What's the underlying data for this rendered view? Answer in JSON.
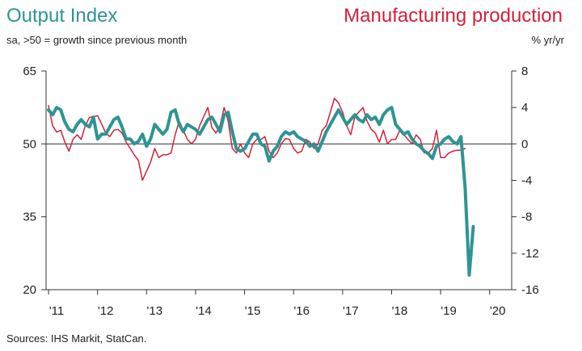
{
  "chart_data": {
    "type": "line",
    "title_left": "Output Index",
    "title_right": "Manufacturing production",
    "subtitle_left": "sa, >50 = growth since previous month",
    "subtitle_right": "% yr/yr",
    "source": "Sources: IHS Markit, StatCan.",
    "x_start": 2011.0,
    "x_range": [
      2010.95,
      2020.45
    ],
    "x_ticks": [
      {
        "value": 2011,
        "label": "'11"
      },
      {
        "value": 2012,
        "label": "'12"
      },
      {
        "value": 2013,
        "label": "'13"
      },
      {
        "value": 2014,
        "label": "'14"
      },
      {
        "value": 2015,
        "label": "'15"
      },
      {
        "value": 2016,
        "label": "'16"
      },
      {
        "value": 2017,
        "label": "'17"
      },
      {
        "value": 2018,
        "label": "'18"
      },
      {
        "value": 2019,
        "label": "'19"
      },
      {
        "value": 2020,
        "label": "'20"
      }
    ],
    "left_axis": {
      "range": [
        20,
        65
      ],
      "ticks": [
        "20",
        "35",
        "50",
        "65"
      ]
    },
    "right_axis": {
      "range": [
        -16,
        8
      ],
      "ticks": [
        "-16",
        "-12",
        "-8",
        "-4",
        "0",
        "4",
        "8"
      ]
    },
    "reference_line": 50,
    "colors": {
      "output": "#2e9494",
      "production": "#d42037",
      "axis": "#333333"
    },
    "series": [
      {
        "name": "Output Index",
        "axis": "left",
        "values": [
          57.0,
          56.0,
          57.5,
          57.0,
          54.5,
          53.0,
          52.5,
          54.0,
          55.0,
          54.0,
          53.5,
          55.5,
          51.0,
          52.0,
          52.0,
          53.5,
          55.0,
          55.5,
          53.5,
          51.0,
          51.0,
          50.0,
          50.5,
          52.0,
          49.5,
          51.0,
          54.0,
          53.0,
          52.0,
          53.0,
          56.5,
          57.0,
          54.0,
          52.5,
          54.0,
          53.5,
          53.0,
          52.0,
          53.5,
          55.0,
          55.5,
          54.0,
          52.5,
          56.0,
          56.5,
          52.5,
          49.0,
          48.5,
          49.0,
          50.5,
          52.0,
          52.0,
          50.0,
          49.5,
          46.5,
          48.5,
          49.5,
          51.5,
          52.5,
          52.0,
          52.5,
          51.5,
          51.0,
          50.5,
          49.5,
          50.0,
          48.5,
          50.5,
          52.5,
          54.0,
          55.5,
          57.0,
          55.5,
          54.0,
          55.0,
          56.0,
          55.0,
          54.5,
          56.0,
          55.0,
          55.5,
          54.0,
          56.0,
          57.0,
          57.5,
          54.0,
          53.0,
          52.0,
          52.5,
          51.0,
          50.0,
          49.5,
          48.5,
          48.0,
          47.0,
          49.5,
          50.0,
          51.0,
          51.5,
          50.5,
          50.0,
          51.5,
          41.0,
          23.0,
          33.0
        ]
      },
      {
        "name": "Manufacturing production",
        "axis": "right",
        "values": [
          4.2,
          2.0,
          1.3,
          1.5,
          0.2,
          -0.8,
          0.5,
          1.0,
          0.5,
          2.0,
          2.9,
          3.0,
          3.1,
          2.2,
          1.2,
          0.8,
          1.5,
          1.6,
          1.2,
          0.2,
          -0.5,
          -1.2,
          -1.8,
          -4.0,
          -3.0,
          -2.0,
          -0.5,
          -1.5,
          -1.2,
          -1.2,
          -1.0,
          1.0,
          2.5,
          1.5,
          0.5,
          0.0,
          0.5,
          2.0,
          3.0,
          4.0,
          1.8,
          1.2,
          2.0,
          4.0,
          2.5,
          -0.5,
          -1.0,
          0.0,
          -1.0,
          -1.5,
          0.0,
          0.5,
          0.5,
          0.8,
          -0.8,
          -1.5,
          -1.0,
          0.0,
          0.6,
          0.5,
          -0.5,
          -1.0,
          -0.8,
          0.5,
          0.2,
          -0.5,
          0.0,
          1.5,
          2.0,
          3.5,
          5.0,
          4.5,
          3.5,
          2.0,
          1.0,
          3.0,
          3.5,
          4.0,
          2.5,
          1.6,
          1.2,
          0.2,
          1.5,
          0.0,
          0.5,
          0.5,
          1.5,
          1.0,
          0.5,
          0.0,
          1.0,
          0.5,
          -1.0,
          -1.0,
          -0.5,
          1.5,
          -1.5,
          -1.5,
          -1.0,
          -0.8,
          -0.7,
          -0.7,
          -0.5
        ]
      }
    ]
  }
}
